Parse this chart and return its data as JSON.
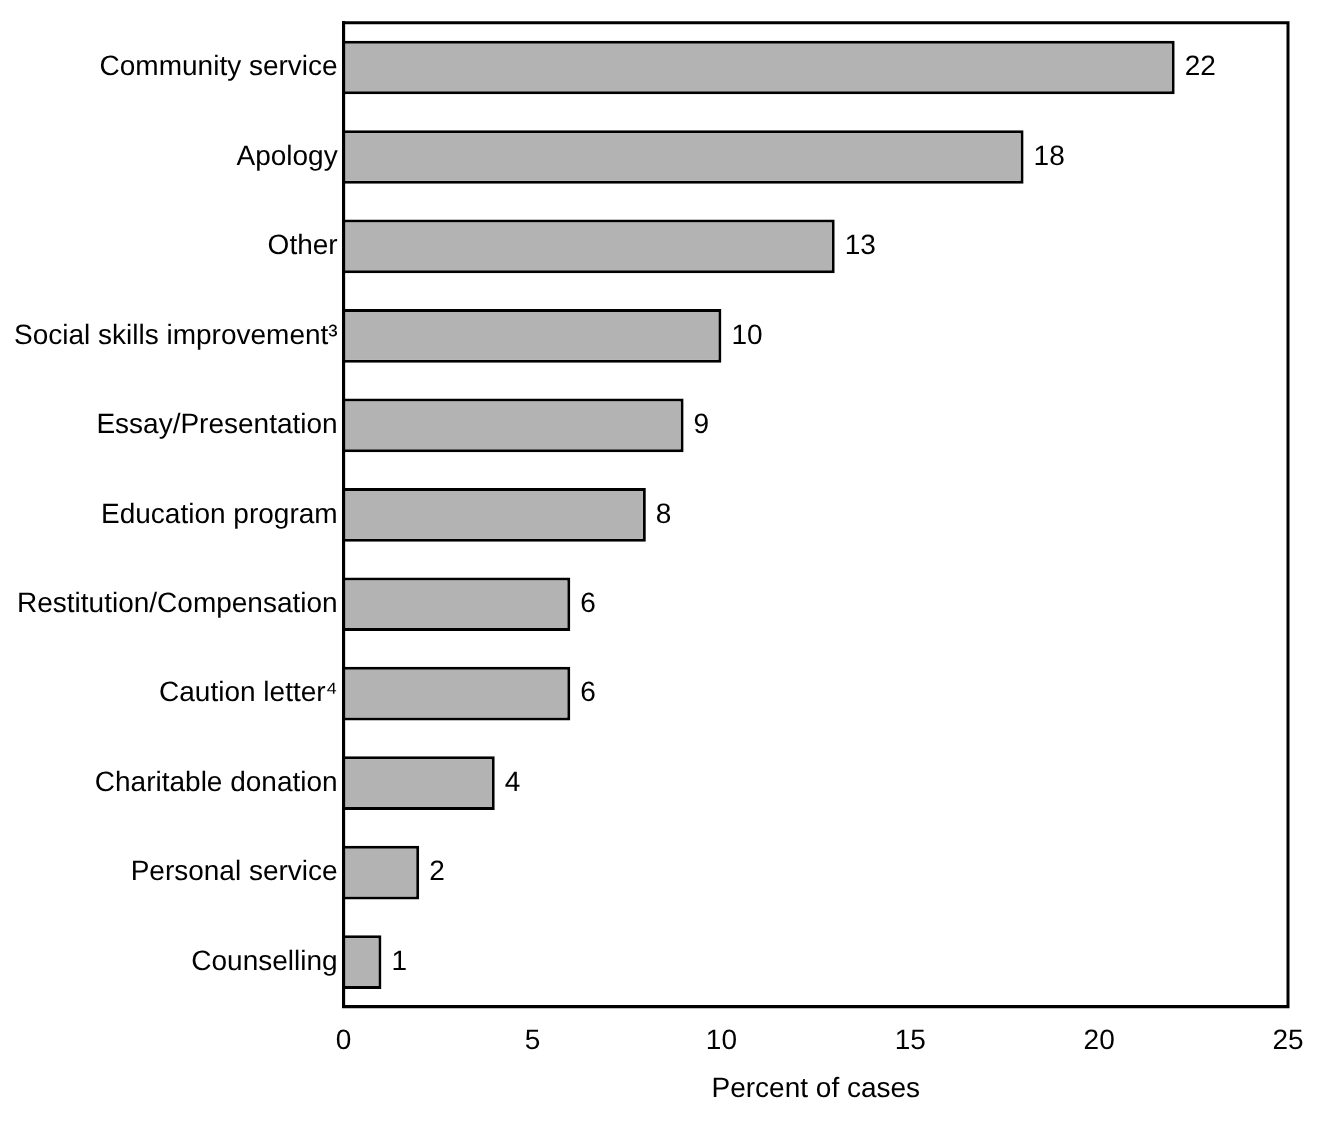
{
  "chart_data": {
    "type": "bar",
    "orientation": "horizontal",
    "xlabel": "Percent of cases",
    "categories": [
      "Community service",
      "Apology",
      "Other",
      "Social skills improvement³",
      "Essay/Presentation",
      "Education program",
      "Restitution/Compensation",
      "Caution letter⁴",
      "Charitable donation",
      "Personal service",
      "Counselling"
    ],
    "values": [
      22,
      18,
      13,
      10,
      9,
      8,
      6,
      6,
      4,
      2,
      1
    ],
    "color": "#b3b3b3",
    "xlim": [
      0,
      25
    ],
    "xticks": [
      0,
      5,
      10,
      15,
      20,
      25
    ],
    "grid": false,
    "legend": false,
    "data_labels": true
  }
}
